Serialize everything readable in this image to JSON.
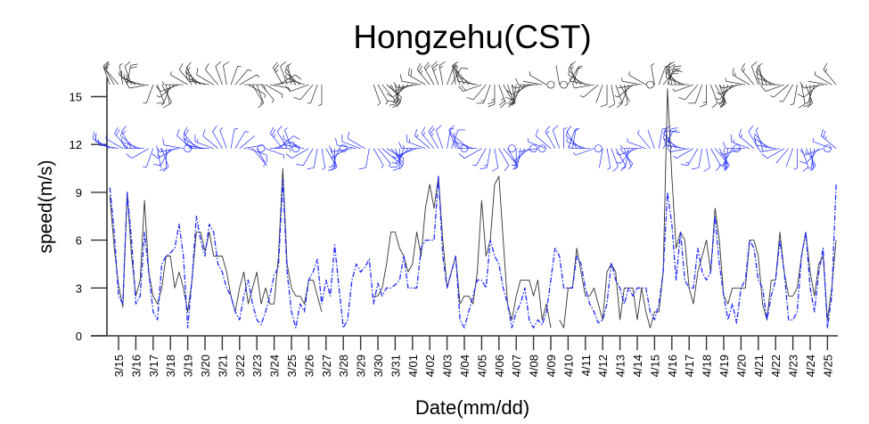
{
  "chart_data": {
    "type": "line",
    "title": "Hongzehu(CST)",
    "xlabel": "Date(mm/dd)",
    "ylabel": "speed(m/s)",
    "ylim": [
      0,
      16
    ],
    "yticks": [
      "0",
      "3",
      "6",
      "9",
      "12",
      "15"
    ],
    "grid": false,
    "legend": "none",
    "xtick_labels": [
      "3/15",
      "3/16",
      "3/17",
      "3/18",
      "3/19",
      "3/20",
      "3/21",
      "3/22",
      "3/23",
      "3/24",
      "3/25",
      "3/26",
      "3/27",
      "3/28",
      "3/29",
      "3/30",
      "3/31",
      "4/01",
      "4/02",
      "4/03",
      "4/04",
      "4/05",
      "4/06",
      "4/07",
      "4/08",
      "4/09",
      "4/10",
      "4/11",
      "4/12",
      "4/13",
      "4/14",
      "4/15",
      "4/16",
      "4/17",
      "4/18",
      "4/19",
      "4/20",
      "4/21",
      "4/22",
      "4/23",
      "4/24",
      "4/25"
    ],
    "x": [
      "03/14 12:00",
      "03/14 18:00",
      "03/15 00:00",
      "03/15 06:00",
      "03/15 12:00",
      "03/15 18:00",
      "03/16 00:00",
      "03/16 06:00",
      "03/16 12:00",
      "03/16 18:00",
      "03/17 00:00",
      "03/17 06:00",
      "03/17 12:00",
      "03/17 18:00",
      "03/18 00:00",
      "03/18 06:00",
      "03/18 12:00",
      "03/18 18:00",
      "03/19 00:00",
      "03/19 06:00",
      "03/19 12:00",
      "03/19 18:00",
      "03/20 00:00",
      "03/20 06:00",
      "03/20 12:00",
      "03/20 18:00",
      "03/21 00:00",
      "03/21 06:00",
      "03/21 12:00",
      "03/21 18:00",
      "03/22 00:00",
      "03/22 06:00",
      "03/22 12:00",
      "03/22 18:00",
      "03/23 00:00",
      "03/23 06:00",
      "03/23 12:00",
      "03/23 18:00",
      "03/24 00:00",
      "03/24 06:00",
      "03/24 12:00",
      "03/24 18:00",
      "03/25 00:00",
      "03/25 06:00",
      "03/25 12:00",
      "03/25 18:00",
      "03/26 00:00",
      "03/26 06:00",
      "03/26 12:00",
      "03/26 18:00",
      "03/27 00:00",
      "03/27 06:00",
      "03/27 12:00",
      "03/27 18:00",
      "03/28 00:00",
      "03/28 06:00",
      "03/28 12:00",
      "03/28 18:00",
      "03/29 00:00",
      "03/29 06:00",
      "03/29 12:00",
      "03/29 18:00",
      "03/30 00:00",
      "03/30 06:00",
      "03/30 12:00",
      "03/30 18:00",
      "03/31 00:00",
      "03/31 06:00",
      "03/31 12:00",
      "03/31 18:00",
      "04/01 00:00",
      "04/01 06:00",
      "04/01 12:00",
      "04/01 18:00",
      "04/02 00:00",
      "04/02 06:00",
      "04/02 12:00",
      "04/02 18:00",
      "04/03 00:00",
      "04/03 06:00",
      "04/03 12:00",
      "04/03 18:00",
      "04/04 00:00",
      "04/04 06:00",
      "04/04 12:00",
      "04/04 18:00",
      "04/05 00:00",
      "04/05 06:00",
      "04/05 12:00",
      "04/05 18:00",
      "04/06 00:00",
      "04/06 06:00",
      "04/06 12:00",
      "04/06 18:00",
      "04/07 00:00",
      "04/07 06:00",
      "04/07 12:00",
      "04/07 18:00",
      "04/08 00:00",
      "04/08 06:00",
      "04/08 12:00",
      "04/08 18:00",
      "04/09 00:00",
      "04/09 06:00",
      "04/09 12:00",
      "04/09 18:00",
      "04/10 00:00",
      "04/10 06:00",
      "04/10 12:00",
      "04/10 18:00",
      "04/11 00:00",
      "04/11 06:00",
      "04/11 12:00",
      "04/11 18:00",
      "04/12 00:00",
      "04/12 06:00",
      "04/12 12:00",
      "04/12 18:00",
      "04/13 00:00",
      "04/13 06:00",
      "04/13 12:00",
      "04/13 18:00",
      "04/14 00:00",
      "04/14 06:00",
      "04/14 12:00",
      "04/14 18:00",
      "04/15 00:00",
      "04/15 06:00",
      "04/15 12:00",
      "04/15 18:00",
      "04/16 00:00",
      "04/16 06:00",
      "04/16 12:00",
      "04/16 18:00",
      "04/17 00:00",
      "04/17 06:00",
      "04/17 12:00",
      "04/17 18:00",
      "04/18 00:00",
      "04/18 06:00",
      "04/18 12:00",
      "04/18 18:00",
      "04/19 00:00",
      "04/19 06:00",
      "04/19 12:00",
      "04/19 18:00",
      "04/20 00:00",
      "04/20 06:00",
      "04/20 12:00",
      "04/20 18:00",
      "04/21 00:00",
      "04/21 06:00",
      "04/21 12:00",
      "04/21 18:00",
      "04/22 00:00",
      "04/22 06:00",
      "04/22 12:00",
      "04/22 18:00",
      "04/23 00:00",
      "04/23 06:00",
      "04/23 12:00",
      "04/23 18:00",
      "04/24 00:00",
      "04/24 06:00",
      "04/24 12:00",
      "04/24 18:00",
      "04/25 00:00",
      "04/25 06:00",
      "04/25 12:00"
    ],
    "series": [
      {
        "color": "#333333",
        "style": "solid",
        "values": [
          8.8,
          5.5,
          3.2,
          1.8,
          9,
          5,
          2.5,
          3.5,
          8.5,
          4,
          2.5,
          2,
          3,
          5,
          5,
          3,
          4,
          3,
          1.5,
          3.5,
          6.5,
          6.5,
          5.3,
          6.5,
          5,
          5,
          5,
          4,
          2.5,
          1.5,
          3,
          4,
          2,
          3,
          4,
          2,
          3,
          2,
          2,
          5,
          10.5,
          4.5,
          3,
          2.5,
          2.5,
          2,
          3.5,
          3.5,
          2.5,
          1.5,
          null,
          null,
          null,
          null,
          null,
          null,
          null,
          null,
          null,
          null,
          null,
          2.5,
          2.5,
          3,
          4.5,
          6.5,
          6.5,
          5.5,
          5,
          4,
          4.5,
          6.5,
          5,
          8,
          9.5,
          8,
          10,
          6,
          3,
          4,
          5,
          2,
          2.5,
          2.5,
          2,
          4,
          8.5,
          5,
          6,
          9.5,
          10,
          6,
          2,
          1,
          2.5,
          3.5,
          3.5,
          3.5,
          2.5,
          3.5,
          1,
          2,
          0.5,
          null,
          1,
          0.5,
          3,
          3,
          5.5,
          4,
          2.5,
          2.5,
          3,
          2,
          1,
          4,
          4.5,
          4,
          1,
          3,
          3,
          3,
          1,
          3,
          1.5,
          0.5,
          1.5,
          1.5,
          4,
          15.5,
          10,
          5.5,
          6.5,
          6,
          3,
          2,
          4,
          5,
          6,
          4,
          8,
          6,
          2.5,
          2,
          3,
          3,
          3,
          3,
          6,
          6,
          5,
          2,
          1,
          3.5,
          3.5,
          6.5,
          4,
          2.5,
          2.5,
          3,
          5,
          6.5,
          4,
          2.5,
          4.5,
          5,
          1,
          3,
          6
        ],
        "barb_level": 15.75,
        "direction_deg": [
          340,
          330,
          320,
          350,
          10,
          340,
          300,
          290,
          280,
          260,
          200,
          160,
          150,
          170,
          200,
          230,
          250,
          270,
          300,
          320,
          330,
          310,
          290,
          280,
          300,
          320,
          340,
          350,
          20,
          40,
          60,
          90,
          120,
          150,
          160,
          140,
          120,
          100,
          80,
          60,
          330,
          340,
          350,
          330,
          310,
          290,
          250,
          220,
          200,
          180,
          160,
          170,
          190,
          210,
          230,
          250,
          270,
          290,
          300,
          310,
          200,
          160,
          150,
          140,
          130,
          150,
          170,
          190,
          210,
          230,
          250,
          260,
          280,
          300,
          320,
          330,
          340,
          350,
          20,
          30,
          350,
          340,
          330,
          320,
          300,
          280,
          250,
          220,
          200,
          180,
          160,
          150,
          160,
          170,
          190,
          200,
          220,
          240,
          260,
          270,
          280,
          300,
          320,
          340,
          350,
          10,
          30,
          20,
          340,
          320,
          300,
          280,
          260,
          230,
          200,
          180,
          170,
          160,
          150,
          170,
          200,
          230,
          260,
          280,
          300,
          330,
          350,
          20,
          40,
          20,
          350,
          330,
          310,
          290,
          270,
          250,
          220,
          200,
          180,
          160,
          150,
          160,
          180,
          200,
          220,
          240,
          260,
          280,
          300,
          320,
          340,
          350,
          330,
          310,
          290,
          270,
          250,
          230,
          210,
          190,
          170,
          160,
          180,
          200,
          230,
          260,
          280,
          300,
          320
        ]
      },
      {
        "color": "#1f2bff",
        "style": "dash-dot",
        "values": [
          9.3,
          6.5,
          2.5,
          2,
          9,
          6,
          2,
          2.5,
          6.5,
          4,
          1.5,
          1,
          4.5,
          5,
          5.2,
          5.5,
          7,
          5,
          0.5,
          3.5,
          7.5,
          6,
          5,
          7,
          6.5,
          4.5,
          4,
          3,
          2.5,
          1.5,
          1,
          2.5,
          3.5,
          2,
          1,
          0.7,
          1.5,
          2.5,
          3.8,
          4.3,
          9.8,
          4,
          1.5,
          0.5,
          2,
          1.5,
          3.5,
          4,
          4.8,
          2,
          3.5,
          2.5,
          5.7,
          3,
          0.5,
          1,
          3.5,
          4.5,
          4,
          4.3,
          4.8,
          2,
          3.3,
          2.5,
          3,
          3,
          3.2,
          3.5,
          5,
          3,
          3,
          3,
          5.5,
          6,
          6,
          6,
          10,
          5,
          3,
          4,
          5,
          1,
          0.5,
          1.5,
          2.5,
          3.5,
          3.5,
          3,
          6,
          5,
          4.5,
          3,
          2,
          0.5,
          1.5,
          2,
          3,
          1,
          0.5,
          1,
          0.7,
          1.5,
          3.5,
          5.5,
          5,
          3,
          3,
          3,
          5,
          4.5,
          3,
          2,
          1.5,
          0.8,
          1,
          2,
          4.6,
          3.5,
          3,
          2,
          3,
          2.5,
          3,
          3,
          3,
          1.5,
          1,
          2,
          4,
          9,
          7,
          3.5,
          6.5,
          3.5,
          3,
          3,
          5.5,
          4,
          3.5,
          4,
          7.5,
          4.5,
          2.5,
          1,
          2,
          0.8,
          3,
          3.5,
          6,
          5.5,
          3.5,
          3,
          1,
          2.5,
          3.5,
          6,
          4,
          1,
          1,
          1.5,
          5,
          6.5,
          3,
          1.5,
          4,
          5.5,
          0.5,
          2.5,
          9.5
        ],
        "barb_level": 11.75,
        "direction_deg": [
          300,
          290,
          280,
          300,
          320,
          330,
          310,
          290,
          270,
          240,
          200,
          170,
          160,
          180,
          210,
          240,
          260,
          280,
          300,
          310,
          320,
          300,
          280,
          270,
          290,
          310,
          330,
          340,
          10,
          30,
          50,
          80,
          110,
          140,
          150,
          130,
          110,
          90,
          70,
          50,
          320,
          330,
          340,
          320,
          300,
          280,
          240,
          210,
          190,
          170,
          150,
          160,
          180,
          200,
          220,
          240,
          260,
          280,
          290,
          300,
          190,
          150,
          140,
          130,
          120,
          140,
          160,
          180,
          200,
          220,
          240,
          250,
          270,
          290,
          310,
          320,
          330,
          340,
          10,
          20,
          340,
          330,
          320,
          310,
          290,
          270,
          240,
          210,
          190,
          170,
          150,
          140,
          150,
          160,
          180,
          190,
          210,
          230,
          250,
          260,
          270,
          290,
          310,
          330,
          340,
          0,
          20,
          10,
          330,
          310,
          290,
          270,
          250,
          220,
          190,
          170,
          160,
          150,
          140,
          160,
          190,
          220,
          250,
          270,
          290,
          320,
          340,
          10,
          30,
          10,
          340,
          320,
          300,
          280,
          260,
          240,
          210,
          190,
          170,
          150,
          140,
          150,
          170,
          190,
          210,
          230,
          250,
          270,
          290,
          310,
          330,
          340,
          320,
          300,
          280,
          260,
          240,
          220,
          200,
          180,
          160,
          150,
          170,
          190,
          220,
          250,
          270,
          290,
          310
        ]
      }
    ]
  }
}
